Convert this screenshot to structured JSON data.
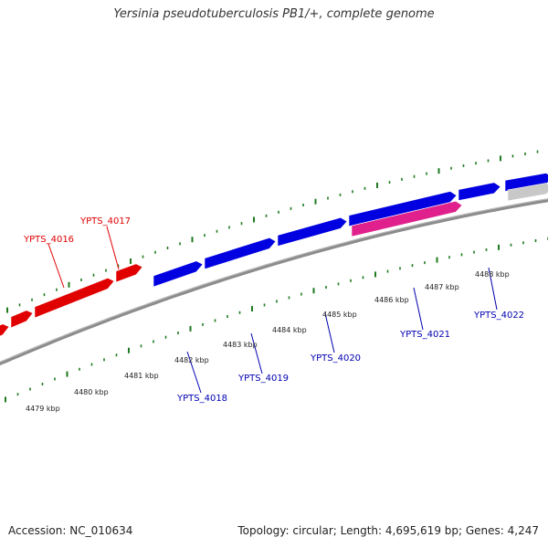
{
  "title": "Yersinia pseudotuberculosis PB1/+, complete genome",
  "footer": {
    "accession": "Accession: NC_010634",
    "summary": "Topology: circular; Length: 4,695,619 bp; Genes: 4,247"
  },
  "colors": {
    "tick": "#1e7a1e",
    "backbone": "#8c8c8c",
    "gene_red": "#e00000",
    "gene_blue": "#0000e0",
    "gene_pink": "#e0208c",
    "gene_gray": "#c8c8c8",
    "label_red": "#e00000",
    "label_blue": "#0000b0"
  },
  "scale_labels": [
    "4479 kbp",
    "4480 kbp",
    "4481 kbp",
    "4482 kbp",
    "4483 kbp",
    "4484 kbp",
    "4485 kbp",
    "4486 kbp",
    "4487 kbp",
    "4488 kbp"
  ],
  "gene_labels": [
    {
      "text": "YPTS_4016",
      "color": "red"
    },
    {
      "text": "YPTS_4017",
      "color": "red"
    },
    {
      "text": "YPTS_4018",
      "color": "blue"
    },
    {
      "text": "YPTS_4019",
      "color": "blue"
    },
    {
      "text": "YPTS_4020",
      "color": "blue"
    },
    {
      "text": "YPTS_4021",
      "color": "blue"
    },
    {
      "text": "YPTS_4022",
      "color": "blue"
    }
  ],
  "genes": [
    {
      "color": "red"
    },
    {
      "color": "red"
    },
    {
      "color": "red"
    },
    {
      "color": "red"
    },
    {
      "color": "blue"
    },
    {
      "color": "blue"
    },
    {
      "color": "blue"
    },
    {
      "color": "blue"
    },
    {
      "color": "blue"
    },
    {
      "color": "blue"
    },
    {
      "color": "pink"
    },
    {
      "color": "gray"
    }
  ]
}
